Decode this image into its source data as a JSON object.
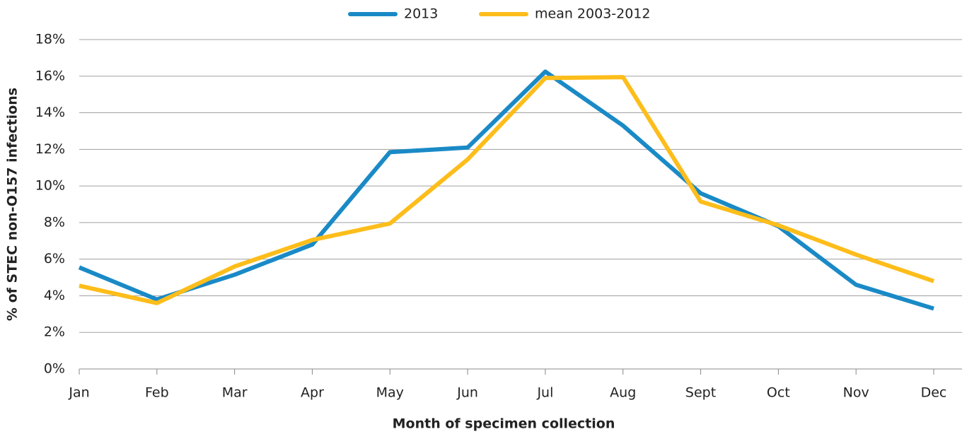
{
  "chart_data": {
    "type": "line",
    "x_label": "Month of specimen collection",
    "y_label": "% of STEC non-O157 infections",
    "categories": [
      "Jan",
      "Feb",
      "Mar",
      "Apr",
      "May",
      "Jun",
      "Jul",
      "Aug",
      "Sept",
      "Oct",
      "Nov",
      "Dec"
    ],
    "series": [
      {
        "name": "2013",
        "color": "#1a8ac6",
        "values": [
          5.55,
          3.8,
          5.15,
          6.8,
          11.85,
          12.1,
          16.25,
          13.3,
          9.6,
          7.8,
          4.6,
          3.3
        ]
      },
      {
        "name": "mean 2003-2012",
        "color": "#fdbd1a",
        "values": [
          4.55,
          3.6,
          5.6,
          7.05,
          7.95,
          11.45,
          15.9,
          15.95,
          9.15,
          7.85,
          6.25,
          4.8
        ]
      }
    ],
    "ylim": [
      0,
      18
    ],
    "yticks": [
      {
        "value": 0,
        "label": "0%"
      },
      {
        "value": 2,
        "label": "2%"
      },
      {
        "value": 4,
        "label": "4%"
      },
      {
        "value": 6,
        "label": "6%"
      },
      {
        "value": 8,
        "label": "8%"
      },
      {
        "value": 10,
        "label": "10%"
      },
      {
        "value": 12,
        "label": "12%"
      },
      {
        "value": 14,
        "label": "14%"
      },
      {
        "value": 16,
        "label": "16%"
      },
      {
        "value": 18,
        "label": "18%"
      }
    ],
    "grid": true,
    "legend": "top"
  }
}
